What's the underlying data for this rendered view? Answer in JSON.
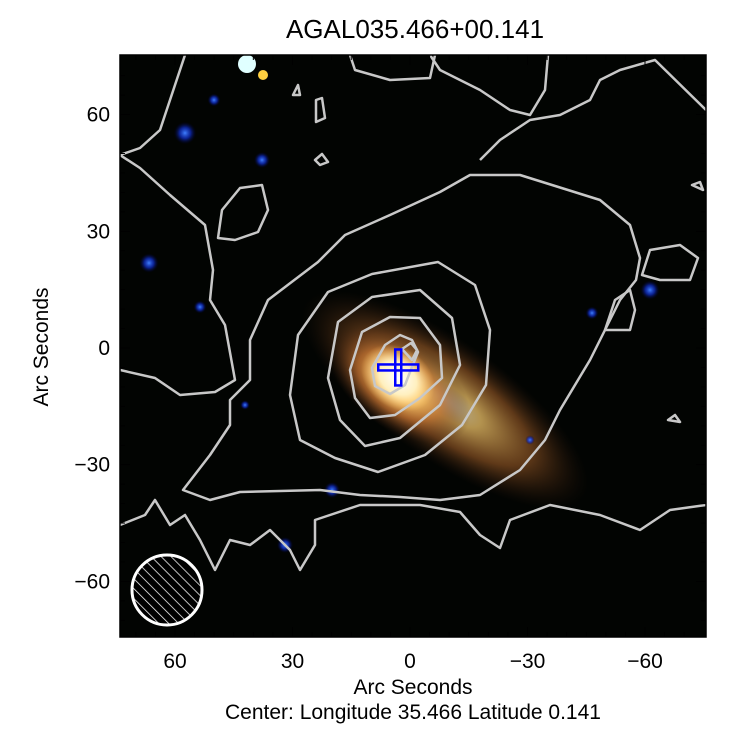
{
  "chart_data": {
    "type": "image-contour",
    "title": "AGAL035.466+00.141",
    "xlabel": "Arc Seconds",
    "ylabel": "Arc Seconds",
    "subtitle": "Center:  Longitude 35.466 Latitude 0.141",
    "xlim": [
      75,
      -75
    ],
    "ylim": [
      -74,
      75
    ],
    "x_ticks": [
      60,
      30,
      0,
      -30,
      -60
    ],
    "y_ticks": [
      60,
      30,
      0,
      -30,
      -60
    ],
    "x_tick_labels": [
      "60",
      "30",
      "0",
      "−30",
      "−60"
    ],
    "y_tick_labels": [
      "60",
      "30",
      "0",
      "−30",
      "−60"
    ],
    "marker": {
      "type": "cross",
      "x": 3,
      "y": -5,
      "color": "#0000ff"
    },
    "beam": {
      "x": 62,
      "y": -62,
      "hatched": true,
      "color": "#ffffff"
    },
    "contour_color": "#c0c0c0",
    "background_color": "#000000",
    "emission_color": "#f0a050"
  }
}
